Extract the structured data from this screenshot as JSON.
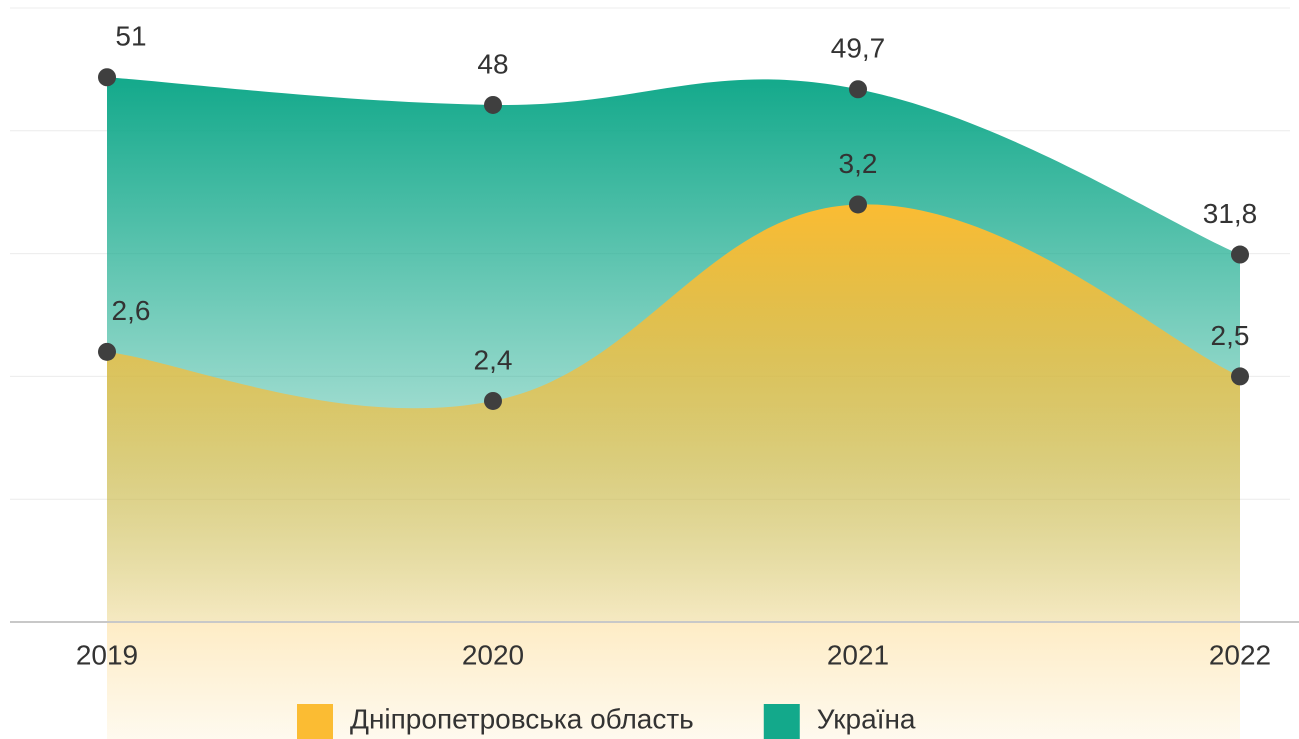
{
  "chart_data": {
    "type": "area",
    "categories": [
      "2019",
      "2020",
      "2021",
      "2022"
    ],
    "series": [
      {
        "name": "Дніпропетровська область",
        "color": "#fbbc33",
        "values": [
          2.6,
          2.4,
          3.2,
          2.5
        ],
        "value_labels": [
          "2,6",
          "2,4",
          "3,2",
          "2,5"
        ]
      },
      {
        "name": "Україна",
        "color": "#13a98b",
        "axis": "y2",
        "values": [
          51,
          48,
          49.7,
          31.8
        ],
        "value_labels": [
          "51",
          "48",
          "49,7",
          "31,8"
        ]
      }
    ],
    "ylim": [
      1.5,
      4.0
    ],
    "yticks": [
      1.5,
      2,
      2.5,
      3,
      3.5,
      4
    ],
    "y2lim": [
      -8,
      58.5
    ],
    "grid": true,
    "legend": "bottom"
  }
}
